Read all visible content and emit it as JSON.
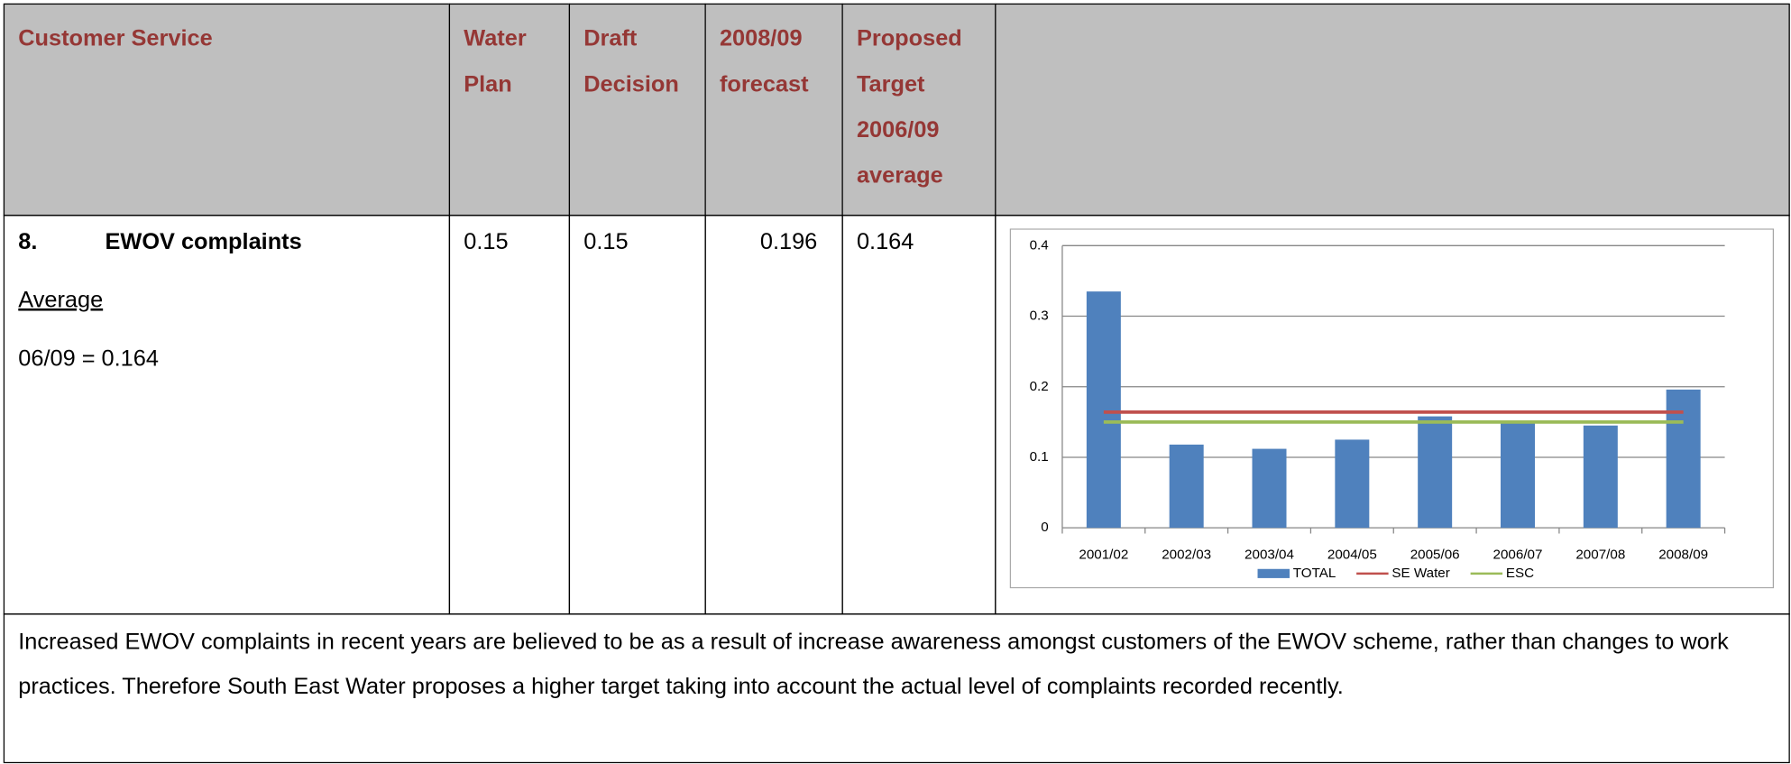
{
  "table": {
    "header": [
      "Customer Service",
      "Water Plan",
      "Draft Decision",
      "2008/09 forecast",
      "Proposed Target 2006/09 average"
    ],
    "row": {
      "number": "8.",
      "label": "EWOV complaints",
      "sublabel": "Average",
      "average": "06/09 = 0.164",
      "cells": [
        "0.15",
        "0.15",
        "0.196",
        "0.164"
      ]
    },
    "note": "Increased EWOV complaints in recent years are believed to be as a result of increase awareness amongst customers of the EWOV scheme, rather than changes to work practices.  Therefore South East Water proposes a higher target taking into account the actual level of complaints recorded recently."
  },
  "chart_data": {
    "type": "bar",
    "categories": [
      "2001/02",
      "2002/03",
      "2003/04",
      "2004/05",
      "2005/06",
      "2006/07",
      "2007/08",
      "2008/09"
    ],
    "series": [
      {
        "name": "TOTAL",
        "type": "bar",
        "color": "#4f81bd",
        "values": [
          0.335,
          0.118,
          0.112,
          0.125,
          0.158,
          0.15,
          0.145,
          0.196
        ]
      },
      {
        "name": "SE Water",
        "type": "line",
        "color": "#c0504d",
        "values": [
          0.164,
          0.164,
          0.164,
          0.164,
          0.164,
          0.164,
          0.164,
          0.164
        ]
      },
      {
        "name": "ESC",
        "type": "line",
        "color": "#9bbb59",
        "values": [
          0.15,
          0.15,
          0.15,
          0.15,
          0.15,
          0.15,
          0.15,
          0.15
        ]
      }
    ],
    "ylim": [
      0,
      0.4
    ],
    "yticks": [
      0,
      0.1,
      0.2,
      0.3,
      0.4
    ],
    "grid": true,
    "legend": "bottom"
  }
}
